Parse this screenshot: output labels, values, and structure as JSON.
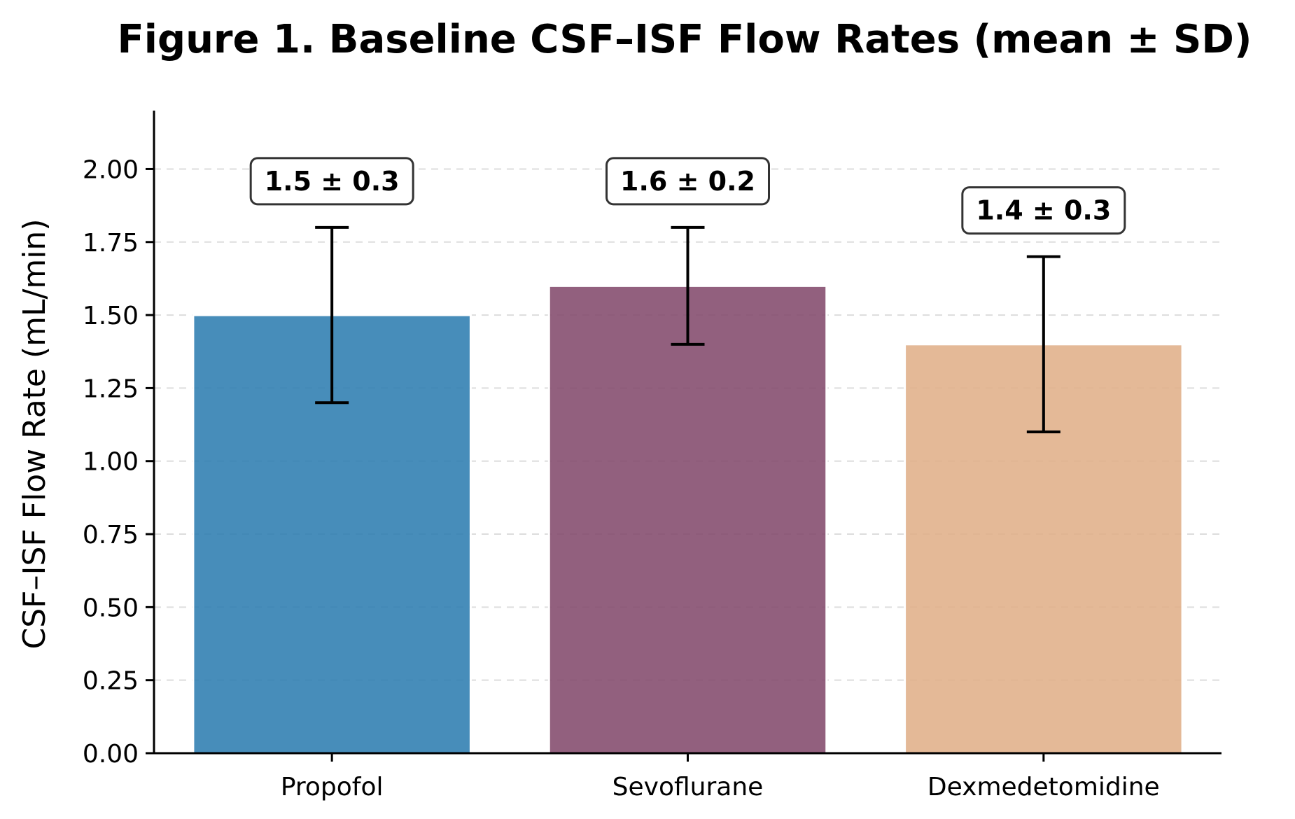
{
  "chart_data": {
    "type": "bar",
    "title": "Figure 1. Baseline CSF–ISF Flow Rates (mean ± SD)",
    "xlabel": "",
    "ylabel": "CSF–ISF Flow Rate (mL/min)",
    "categories": [
      "Propofol",
      "Sevoflurane",
      "Dexmedetomidine"
    ],
    "values": [
      1.5,
      1.6,
      1.4
    ],
    "errors": [
      0.3,
      0.2,
      0.3
    ],
    "annotations": [
      "1.5 ± 0.3",
      "1.6 ± 0.2",
      "1.4 ± 0.3"
    ],
    "colors": [
      "#2E7DB0",
      "#834A6C",
      "#E0AF89"
    ],
    "ylim": [
      0,
      2.2
    ],
    "yticks": [
      0.0,
      0.25,
      0.5,
      0.75,
      1.0,
      1.25,
      1.5,
      1.75,
      2.0
    ],
    "ytick_labels": [
      "0.00",
      "0.25",
      "0.50",
      "0.75",
      "1.00",
      "1.25",
      "1.50",
      "1.75",
      "2.00"
    ],
    "grid": "y-dashed"
  }
}
